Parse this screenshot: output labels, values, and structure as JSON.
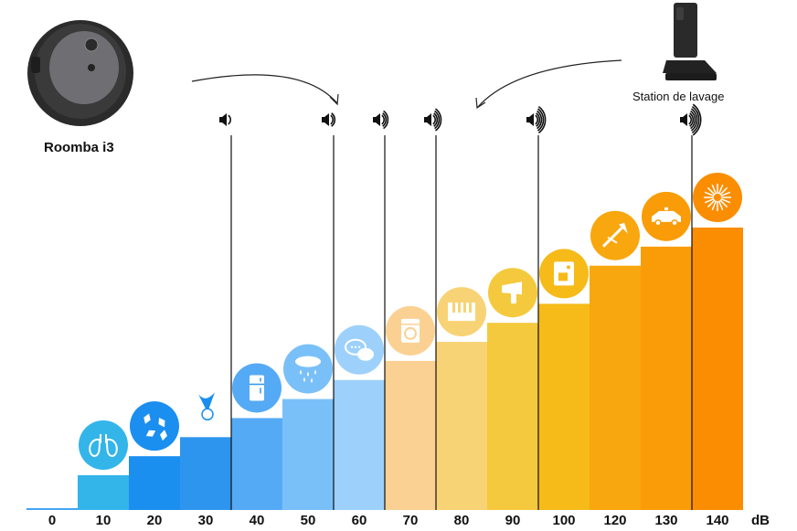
{
  "products": {
    "robot_name": "Roomba i3",
    "station_name": "Station de lavage",
    "robot_icon": "roomba-robot-icon",
    "station_icon": "docking-station-icon"
  },
  "chart_data": {
    "type": "bar",
    "title": "",
    "xlabel": "",
    "ylabel": "",
    "unit_label": "dB",
    "categories": [
      "0",
      "10",
      "20",
      "30",
      "40",
      "50",
      "60",
      "70",
      "80",
      "90",
      "100",
      "120",
      "130",
      "140"
    ],
    "values": [
      0,
      10,
      20,
      30,
      40,
      50,
      60,
      70,
      80,
      90,
      100,
      120,
      130,
      140
    ],
    "ylim": [
      0,
      140
    ],
    "colors": [
      "#42a5f5",
      "#33b5ea",
      "#1a8ff0",
      "#2e95ee",
      "#55aaf5",
      "#7ac0f8",
      "#9dd1fb",
      "#fbd193",
      "#f8d375",
      "#f4c93d",
      "#f6ba19",
      "#f9a70e",
      "#fa9c07",
      "#fa8d02"
    ],
    "bar_icons": [
      "",
      "lungs-icon",
      "leaves-icon",
      "whisper-icon",
      "refrigerator-icon",
      "rain-icon",
      "chat-icon",
      "washing-machine-icon",
      "piano-icon",
      "hair-dryer-icon",
      "coffee-machine-icon",
      "trombone-icon",
      "police-car-icon",
      "fireworks-icon"
    ],
    "markers": [
      {
        "value": 40,
        "waves": 1
      },
      {
        "value": 60,
        "waves": 2
      },
      {
        "value": 70,
        "waves": 3
      },
      {
        "value": 80,
        "waves": 4
      },
      {
        "value": 100,
        "waves": 5
      },
      {
        "value": 140,
        "waves": 6
      }
    ],
    "robot_level": [
      60,
      80
    ],
    "station_level": 80,
    "grid": false,
    "legend": "none"
  }
}
